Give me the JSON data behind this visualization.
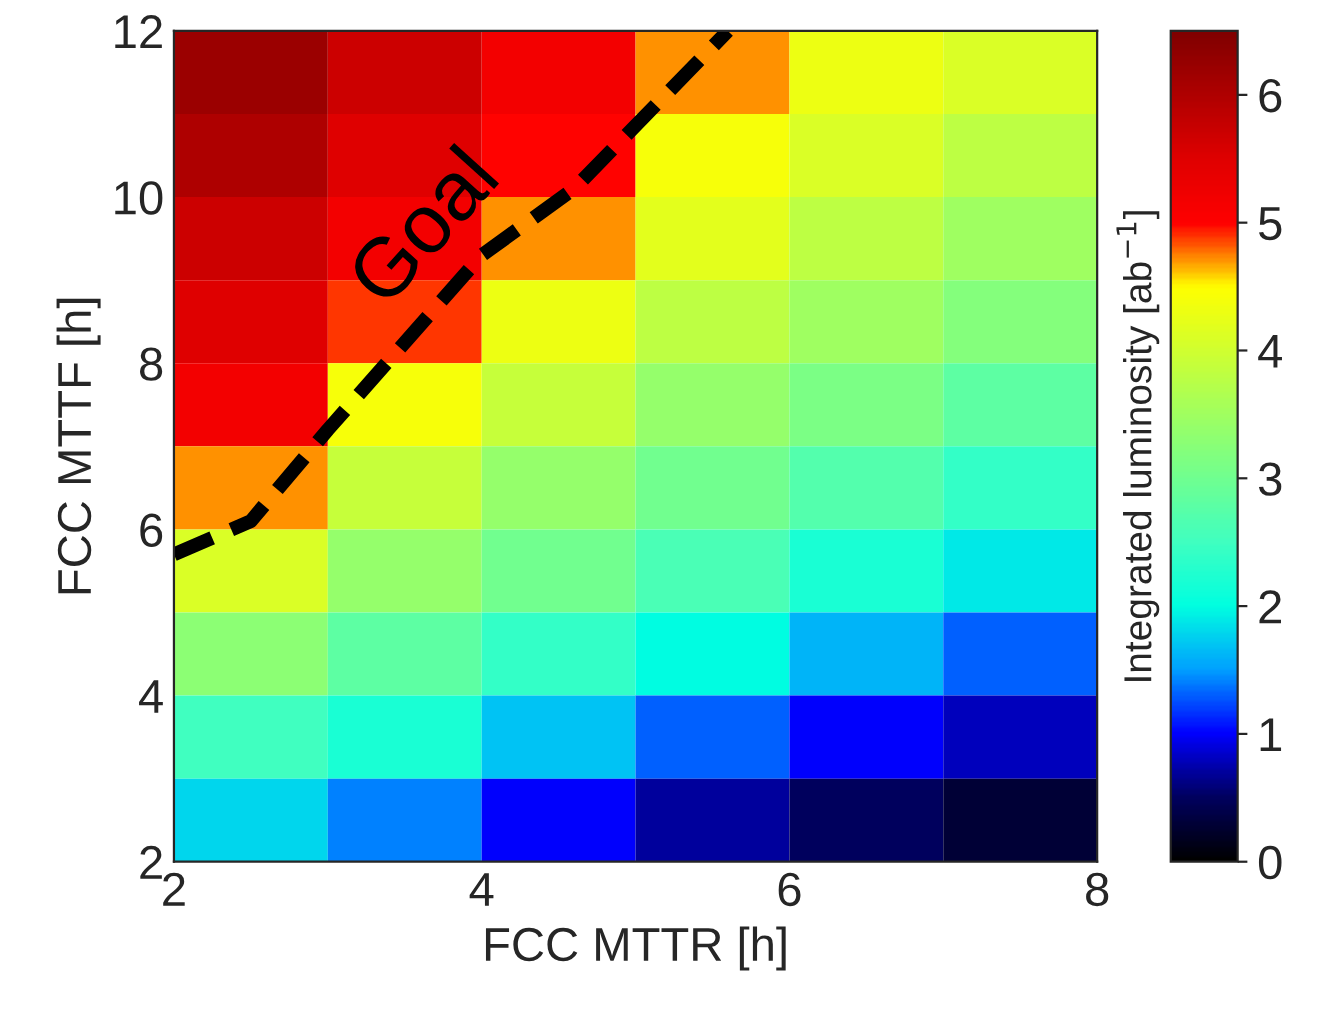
{
  "chart_data": {
    "type": "heatmap",
    "xlabel": "FCC MTTR [h]",
    "ylabel": "FCC MTTF [h]",
    "clabel": "Integrated luminosity [ab$^{−1}$]",
    "x": [
      2.5,
      3.5,
      4.5,
      5.5,
      6.5,
      7.5
    ],
    "y": [
      11.5,
      10.5,
      9.5,
      8.5,
      7.5,
      6.5,
      5.5,
      4.5,
      3.5,
      2.5
    ],
    "cells": [
      [
        6.2,
        5.7,
        5.2,
        4.7,
        4.3,
        4.1
      ],
      [
        6.0,
        5.5,
        5.0,
        4.4,
        4.1,
        3.8
      ],
      [
        5.7,
        5.2,
        4.7,
        4.2,
        3.8,
        3.5
      ],
      [
        5.5,
        4.9,
        4.3,
        3.8,
        3.5,
        3.2
      ],
      [
        5.2,
        4.4,
        3.9,
        3.4,
        3.1,
        2.8
      ],
      [
        4.7,
        3.9,
        3.4,
        3.0,
        2.7,
        2.4
      ],
      [
        4.1,
        3.4,
        3.0,
        2.6,
        2.2,
        1.9
      ],
      [
        3.3,
        2.8,
        2.4,
        2.0,
        1.6,
        1.3
      ],
      [
        2.5,
        2.2,
        1.7,
        1.3,
        1.0,
        0.8
      ],
      [
        1.8,
        1.4,
        1.0,
        0.7,
        0.5,
        0.3
      ]
    ],
    "colors": [
      "#000000",
      "#000060",
      "#0000ff",
      "#00a0ff",
      "#00ffe0",
      "#40ffc0",
      "#70ff90",
      "#a0ff60",
      "#d0ff30",
      "#ffff00",
      "#ff0000",
      "#e00000",
      "#b00000",
      "#800000"
    ],
    "clim": [
      0,
      6.5
    ],
    "cticks": [
      0,
      1,
      2,
      3,
      4,
      5,
      6
    ],
    "xlim": [
      2,
      8
    ],
    "xticks": [
      2,
      4,
      6,
      8
    ],
    "ylim": [
      2,
      12
    ],
    "yticks": [
      2,
      4,
      6,
      8,
      10,
      12
    ],
    "series": [
      {
        "type": "line",
        "name": "Goal",
        "color": "#000000",
        "line_style": "dashed",
        "x": [
          2,
          2.5,
          3,
          4,
          4.6,
          5.6
        ],
        "values": [
          5.7,
          6.1,
          7.2,
          9.3,
          10.1,
          12
        ]
      }
    ]
  }
}
